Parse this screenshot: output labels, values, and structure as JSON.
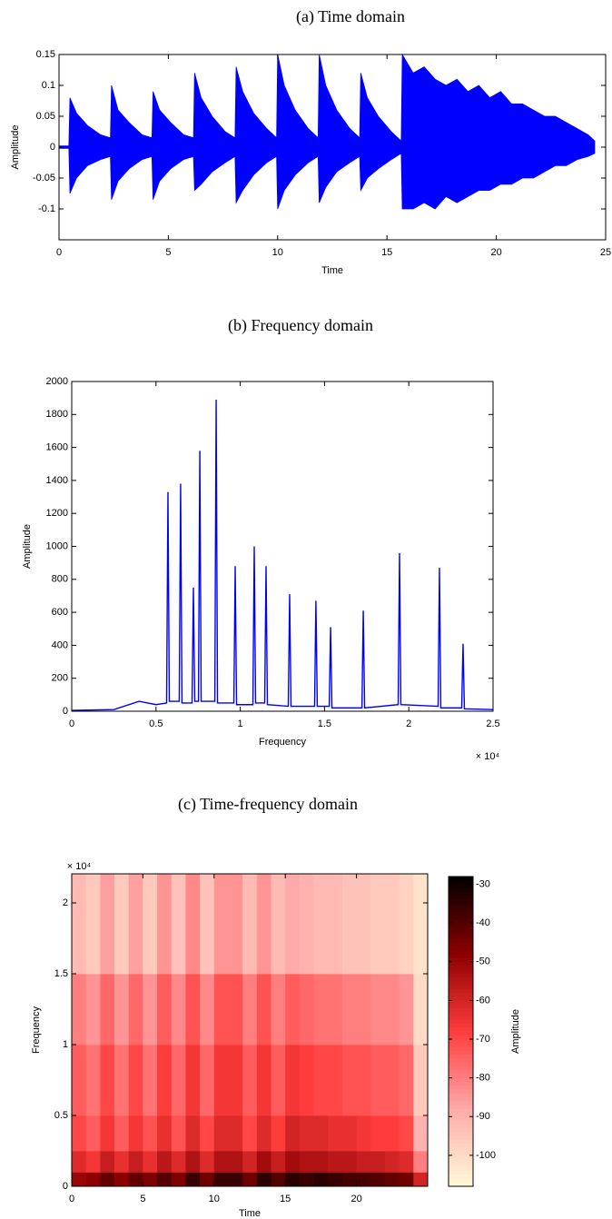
{
  "chart_data": [
    {
      "type": "envelope",
      "title": "(a) Time domain",
      "x_label": "Time",
      "y_label": "Amplitude",
      "color": "#0000ff",
      "xlim": [
        0,
        25
      ],
      "xticks": [
        0,
        5,
        10,
        15,
        20,
        25
      ],
      "ylim": [
        -0.15,
        0.15
      ],
      "yticks": [
        -0.1,
        -0.05,
        0,
        0.05,
        0.1,
        0.15
      ],
      "x": [
        0,
        0.45,
        0.5,
        0.8,
        1.3,
        1.9,
        2.35,
        2.4,
        2.7,
        3.2,
        3.8,
        4.25,
        4.3,
        4.6,
        5.1,
        5.7,
        6.15,
        6.2,
        6.5,
        7.0,
        7.6,
        8.05,
        8.1,
        8.4,
        8.9,
        9.5,
        9.95,
        10.0,
        10.3,
        10.8,
        11.4,
        11.85,
        11.9,
        12.2,
        12.7,
        13.3,
        13.75,
        13.8,
        14.1,
        14.6,
        15.2,
        15.65,
        15.7,
        16.2,
        16.7,
        17.2,
        17.7,
        18.2,
        18.7,
        19.2,
        19.7,
        20.2,
        20.7,
        21.2,
        21.7,
        22.2,
        22.7,
        23.2,
        23.7,
        24.2,
        24.5
      ],
      "max": [
        0.002,
        0.002,
        0.08,
        0.055,
        0.035,
        0.02,
        0.015,
        0.1,
        0.06,
        0.04,
        0.02,
        0.015,
        0.09,
        0.06,
        0.04,
        0.02,
        0.015,
        0.12,
        0.08,
        0.05,
        0.025,
        0.015,
        0.13,
        0.09,
        0.055,
        0.03,
        0.015,
        0.15,
        0.1,
        0.06,
        0.03,
        0.015,
        0.15,
        0.1,
        0.06,
        0.03,
        0.015,
        0.12,
        0.08,
        0.05,
        0.025,
        0.01,
        0.15,
        0.12,
        0.13,
        0.11,
        0.1,
        0.11,
        0.09,
        0.1,
        0.08,
        0.09,
        0.07,
        0.07,
        0.06,
        0.05,
        0.05,
        0.04,
        0.03,
        0.02,
        0.01
      ],
      "min": [
        -0.002,
        -0.002,
        -0.075,
        -0.05,
        -0.03,
        -0.02,
        -0.015,
        -0.085,
        -0.055,
        -0.035,
        -0.02,
        -0.015,
        -0.085,
        -0.055,
        -0.035,
        -0.02,
        -0.015,
        -0.07,
        -0.06,
        -0.04,
        -0.025,
        -0.015,
        -0.09,
        -0.07,
        -0.045,
        -0.025,
        -0.015,
        -0.1,
        -0.07,
        -0.045,
        -0.025,
        -0.015,
        -0.09,
        -0.065,
        -0.04,
        -0.025,
        -0.015,
        -0.07,
        -0.05,
        -0.035,
        -0.02,
        -0.01,
        -0.1,
        -0.1,
        -0.09,
        -0.1,
        -0.08,
        -0.09,
        -0.08,
        -0.07,
        -0.07,
        -0.06,
        -0.06,
        -0.05,
        -0.05,
        -0.04,
        -0.03,
        -0.03,
        -0.02,
        -0.015,
        -0.01
      ]
    },
    {
      "type": "line",
      "title": "(b) Frequency domain",
      "x_label": "Frequency",
      "y_label": "Amplitude",
      "x_exponent_label": "× 10⁴",
      "color": "#0000ff",
      "xlim": [
        0,
        25000
      ],
      "xticks": [
        0,
        {
          "value": 5000,
          "label": "0.5"
        },
        {
          "value": 10000,
          "label": "1"
        },
        {
          "value": 15000,
          "label": "1.5"
        },
        {
          "value": 20000,
          "label": "2"
        },
        {
          "value": 25000,
          "label": "2.5"
        }
      ],
      "ylim": [
        0,
        2000
      ],
      "yticks": [
        0,
        200,
        400,
        600,
        800,
        1000,
        1200,
        1400,
        1600,
        1800,
        2000
      ],
      "x": [
        0,
        2500,
        4000,
        5000,
        5630,
        5710,
        5790,
        6380,
        6460,
        6540,
        7140,
        7220,
        7300,
        7520,
        7600,
        7680,
        8490,
        8570,
        8650,
        9620,
        9700,
        9780,
        10750,
        10830,
        10910,
        11450,
        11530,
        11610,
        12850,
        12930,
        13010,
        14410,
        14490,
        14570,
        15280,
        15360,
        15440,
        17220,
        17300,
        17380,
        19370,
        19450,
        19530,
        21740,
        21820,
        21900,
        23140,
        23220,
        23300,
        25000
      ],
      "values": [
        5,
        10,
        60,
        40,
        50,
        1330,
        60,
        60,
        1380,
        50,
        50,
        750,
        60,
        60,
        1580,
        60,
        60,
        1890,
        50,
        50,
        880,
        40,
        40,
        1000,
        50,
        50,
        880,
        40,
        30,
        710,
        30,
        30,
        670,
        30,
        30,
        510,
        20,
        20,
        610,
        20,
        40,
        960,
        40,
        30,
        870,
        20,
        20,
        410,
        15,
        10
      ]
    },
    {
      "type": "heatmap",
      "title": "(c) Time-frequency domain",
      "x_label": "Time",
      "y_label": "Frequency",
      "y_exponent_label": "× 10⁴",
      "colorbar_label": "Amplitude",
      "xlim": [
        0,
        25
      ],
      "xticks": [
        0,
        5,
        10,
        15,
        20
      ],
      "ylim": [
        0,
        22050
      ],
      "yticks": [
        0,
        {
          "value": 5000,
          "label": "0.5"
        },
        {
          "value": 10000,
          "label": "1"
        },
        {
          "value": 15000,
          "label": "1.5"
        },
        {
          "value": 20000,
          "label": "2"
        }
      ],
      "clim": [
        -108,
        -28
      ],
      "cticks": [
        -100,
        -90,
        -80,
        -70,
        -60,
        -50,
        -40,
        -30
      ],
      "colormap": [
        "#fffad7",
        "#ffaaaa",
        "#ff3c3c",
        "#8c0000",
        "#000000"
      ],
      "x_edges": [
        0,
        1,
        2,
        3,
        4,
        5,
        6,
        7,
        8,
        9,
        10,
        11,
        12,
        13,
        14,
        15,
        16,
        17,
        18,
        19,
        20,
        21,
        22,
        23,
        24,
        25
      ],
      "y_edges": [
        0,
        1000,
        2500,
        5000,
        10000,
        15000,
        22050
      ],
      "z": [
        [
          -50,
          -48,
          -42,
          -48,
          -42,
          -46,
          -40,
          -46,
          -36,
          -44,
          -36,
          -36,
          -44,
          -34,
          -40,
          -34,
          -36,
          -34,
          -36,
          -38,
          -38,
          -40,
          -42,
          -44,
          -60
        ],
        [
          -62,
          -66,
          -58,
          -64,
          -58,
          -64,
          -56,
          -62,
          -54,
          -62,
          -54,
          -54,
          -60,
          -52,
          -58,
          -52,
          -54,
          -54,
          -56,
          -56,
          -58,
          -58,
          -60,
          -62,
          -80
        ],
        [
          -70,
          -74,
          -66,
          -74,
          -66,
          -72,
          -64,
          -72,
          -62,
          -70,
          -62,
          -62,
          -70,
          -62,
          -68,
          -60,
          -62,
          -62,
          -64,
          -64,
          -66,
          -68,
          -68,
          -70,
          -90
        ],
        [
          -74,
          -78,
          -70,
          -78,
          -70,
          -78,
          -68,
          -76,
          -66,
          -76,
          -66,
          -66,
          -74,
          -66,
          -74,
          -66,
          -68,
          -70,
          -70,
          -72,
          -72,
          -74,
          -74,
          -76,
          -96
        ],
        [
          -80,
          -84,
          -76,
          -84,
          -76,
          -84,
          -74,
          -82,
          -72,
          -82,
          -72,
          -72,
          -80,
          -72,
          -80,
          -74,
          -76,
          -78,
          -78,
          -80,
          -80,
          -82,
          -82,
          -84,
          -100
        ],
        [
          -92,
          -96,
          -86,
          -96,
          -86,
          -96,
          -84,
          -94,
          -82,
          -94,
          -84,
          -84,
          -92,
          -84,
          -92,
          -88,
          -90,
          -92,
          -92,
          -94,
          -94,
          -96,
          -96,
          -98,
          -102
        ]
      ]
    }
  ]
}
